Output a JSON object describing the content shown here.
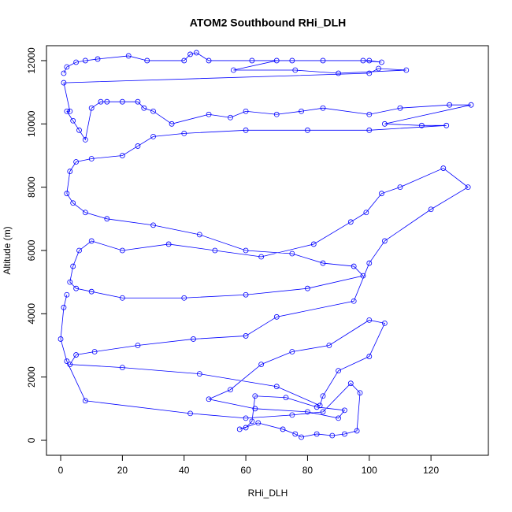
{
  "chart_data": {
    "type": "line",
    "marker": "circle",
    "color": "#0000ff",
    "title": "ATOM2 Southbound RHi_DLH",
    "x_label": "RHi_DLH",
    "y_label": "Altitude (m)",
    "xlim": [
      -4.6,
      138.6
    ],
    "ylim": [
      -473,
      12472
    ],
    "xticks": [
      0,
      20,
      40,
      60,
      80,
      100,
      120
    ],
    "yticks": [
      0,
      2000,
      4000,
      6000,
      8000,
      10000,
      12000
    ],
    "x": [
      1,
      2,
      5,
      8,
      12,
      22,
      28,
      40,
      42,
      44,
      48,
      62,
      75,
      85,
      100,
      104,
      98,
      70,
      56,
      76,
      90,
      112,
      103,
      100,
      1,
      3,
      2,
      4,
      6,
      8,
      10,
      13,
      15,
      20,
      25,
      27,
      30,
      36,
      48,
      55,
      60,
      70,
      78,
      85,
      100,
      110,
      126,
      133,
      105,
      117,
      125,
      100,
      80,
      60,
      40,
      30,
      25,
      20,
      10,
      5,
      3,
      2,
      4,
      8,
      15,
      30,
      45,
      60,
      75,
      85,
      95,
      98,
      80,
      60,
      40,
      20,
      10,
      5,
      3,
      4,
      6,
      10,
      20,
      35,
      50,
      65,
      82,
      94,
      99,
      104,
      110,
      124,
      132,
      120,
      105,
      100,
      95,
      70,
      60,
      43,
      25,
      11,
      5,
      3,
      20,
      45,
      70,
      84,
      85,
      90,
      100,
      105,
      100,
      87,
      75,
      65,
      55,
      48,
      63,
      80,
      90,
      92,
      83,
      73,
      63,
      62,
      60,
      58,
      64,
      72,
      76,
      78,
      83,
      88,
      92,
      96,
      97,
      94,
      85,
      75,
      60,
      42,
      8,
      2,
      0,
      1,
      2
    ],
    "values": [
      11600,
      11800,
      11950,
      12000,
      12050,
      12150,
      12000,
      12000,
      12200,
      12250,
      12000,
      12000,
      12000,
      12000,
      12000,
      11950,
      12000,
      12000,
      11700,
      11700,
      11600,
      11700,
      11750,
      11600,
      11300,
      10400,
      10400,
      10100,
      9800,
      9500,
      10500,
      10700,
      10700,
      10700,
      10700,
      10500,
      10400,
      10000,
      10300,
      10200,
      10400,
      10300,
      10400,
      10500,
      10300,
      10500,
      10600,
      10600,
      10000,
      9950,
      9950,
      9800,
      9800,
      9800,
      9700,
      9600,
      9300,
      9000,
      8900,
      8800,
      8500,
      7800,
      7500,
      7200,
      7000,
      6800,
      6500,
      6000,
      5900,
      5600,
      5500,
      5200,
      4800,
      4600,
      4500,
      4500,
      4700,
      4800,
      5000,
      5500,
      6000,
      6300,
      6000,
      6200,
      6000,
      5800,
      6200,
      6900,
      7200,
      7800,
      8000,
      8600,
      8000,
      7300,
      6300,
      5600,
      4400,
      3900,
      3300,
      3200,
      3000,
      2800,
      2700,
      2400,
      2300,
      2100,
      1700,
      1100,
      1400,
      2200,
      2650,
      3700,
      3800,
      3000,
      2800,
      2400,
      1600,
      1300,
      1000,
      900,
      700,
      950,
      1050,
      1350,
      1400,
      600,
      400,
      350,
      550,
      350,
      200,
      100,
      200,
      150,
      200,
      300,
      1500,
      1800,
      900,
      800,
      700,
      850,
      1250,
      2500,
      3200,
      4200,
      4600
    ]
  }
}
